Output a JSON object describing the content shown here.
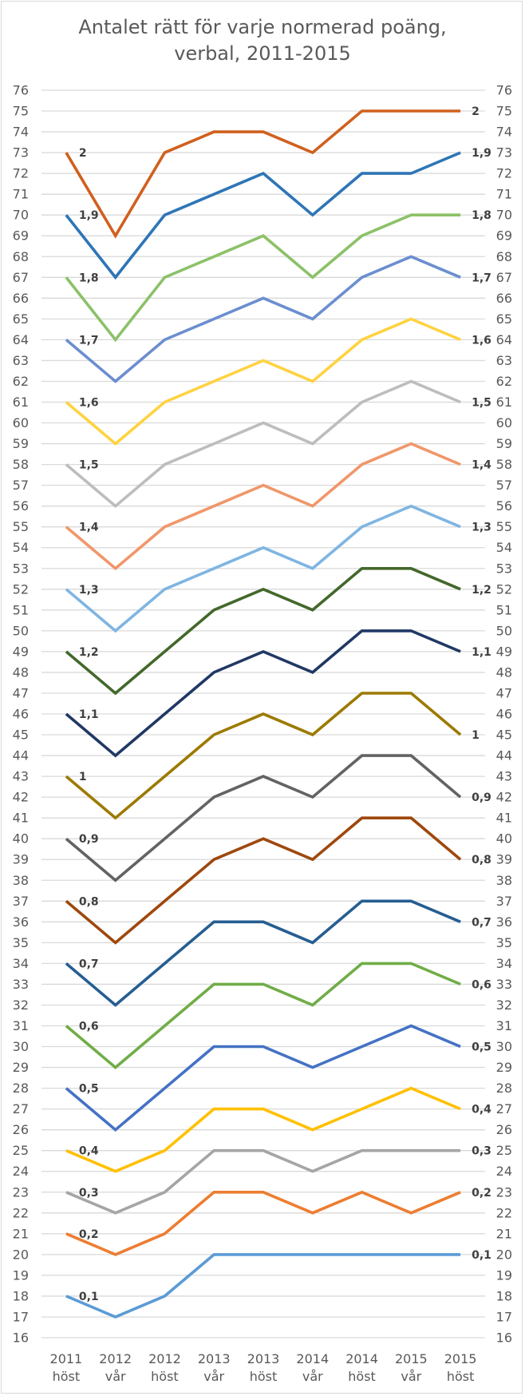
{
  "chart_data": {
    "type": "line",
    "title": "Antalet rätt för varje normerad poäng, verbal, 2011-2015",
    "title_lines": [
      "Antalet rätt för varje normerad poäng,",
      "verbal, 2011-2015"
    ],
    "xlabel": "",
    "ylabel": "",
    "ylim": [
      16,
      76
    ],
    "y_ticks": [
      16,
      17,
      18,
      19,
      20,
      21,
      22,
      23,
      24,
      25,
      26,
      27,
      28,
      29,
      30,
      31,
      32,
      33,
      34,
      35,
      36,
      37,
      38,
      39,
      40,
      41,
      42,
      43,
      44,
      45,
      46,
      47,
      48,
      49,
      50,
      51,
      52,
      53,
      54,
      55,
      56,
      57,
      58,
      59,
      60,
      61,
      62,
      63,
      64,
      65,
      66,
      67,
      68,
      69,
      70,
      71,
      72,
      73,
      74,
      75,
      76
    ],
    "secondary_y_axis": true,
    "grid": true,
    "legend": "none",
    "categories": [
      [
        "2011",
        "höst"
      ],
      [
        "2012",
        "vår"
      ],
      [
        "2012",
        "höst"
      ],
      [
        "2013",
        "vår"
      ],
      [
        "2013",
        "höst"
      ],
      [
        "2014",
        "vår"
      ],
      [
        "2014",
        "höst"
      ],
      [
        "2015",
        "vår"
      ],
      [
        "2015",
        "höst"
      ]
    ],
    "series": [
      {
        "name": "2",
        "color": "#D0601E",
        "values": [
          73,
          69,
          73,
          74,
          74,
          73,
          75,
          75,
          75
        ]
      },
      {
        "name": "1,9",
        "color": "#2E75B6",
        "values": [
          70,
          67,
          70,
          71,
          72,
          70,
          72,
          72,
          73
        ]
      },
      {
        "name": "1,8",
        "color": "#8CC168",
        "values": [
          67,
          64,
          67,
          68,
          69,
          67,
          69,
          70,
          70
        ]
      },
      {
        "name": "1,7",
        "color": "#6B8ED0",
        "values": [
          64,
          62,
          64,
          65,
          66,
          65,
          67,
          68,
          67
        ]
      },
      {
        "name": "1,6",
        "color": "#FFD23F",
        "values": [
          61,
          59,
          61,
          62,
          63,
          62,
          64,
          65,
          64
        ]
      },
      {
        "name": "1,5",
        "color": "#BDBDBD",
        "values": [
          58,
          56,
          58,
          59,
          60,
          59,
          61,
          62,
          61
        ]
      },
      {
        "name": "1,4",
        "color": "#F0976A",
        "values": [
          55,
          53,
          55,
          56,
          57,
          56,
          58,
          59,
          58
        ]
      },
      {
        "name": "1,3",
        "color": "#7FB5E2",
        "values": [
          52,
          50,
          52,
          53,
          54,
          53,
          55,
          56,
          55
        ]
      },
      {
        "name": "1,2",
        "color": "#43682B",
        "values": [
          49,
          47,
          49,
          51,
          52,
          51,
          53,
          53,
          52
        ]
      },
      {
        "name": "1,1",
        "color": "#203864",
        "values": [
          46,
          44,
          46,
          48,
          49,
          48,
          50,
          50,
          49
        ]
      },
      {
        "name": "1",
        "color": "#9C7A00",
        "values": [
          43,
          41,
          43,
          45,
          46,
          45,
          47,
          47,
          45
        ]
      },
      {
        "name": "0,9",
        "color": "#636363",
        "values": [
          40,
          38,
          40,
          42,
          43,
          42,
          44,
          44,
          42
        ]
      },
      {
        "name": "0,8",
        "color": "#9E480E",
        "values": [
          37,
          35,
          37,
          39,
          40,
          39,
          41,
          41,
          39
        ]
      },
      {
        "name": "0,7",
        "color": "#255E91",
        "values": [
          34,
          32,
          34,
          36,
          36,
          35,
          37,
          37,
          36
        ]
      },
      {
        "name": "0,6",
        "color": "#70AD47",
        "values": [
          31,
          29,
          31,
          33,
          33,
          32,
          34,
          34,
          33
        ]
      },
      {
        "name": "0,5",
        "color": "#4472C4",
        "values": [
          28,
          26,
          28,
          30,
          30,
          29,
          30,
          31,
          30
        ]
      },
      {
        "name": "0,4",
        "color": "#FFC000",
        "values": [
          25,
          24,
          25,
          27,
          27,
          26,
          27,
          28,
          27
        ]
      },
      {
        "name": "0,3",
        "color": "#A5A5A5",
        "values": [
          23,
          22,
          23,
          25,
          25,
          24,
          25,
          25,
          25
        ]
      },
      {
        "name": "0,2",
        "color": "#ED7D31",
        "values": [
          21,
          20,
          21,
          23,
          23,
          22,
          23,
          22,
          23
        ]
      },
      {
        "name": "0,1",
        "color": "#5B9BD5",
        "values": [
          18,
          17,
          18,
          20,
          20,
          20,
          20,
          20,
          20
        ]
      }
    ],
    "data_labels": "series name shown at first and last point of each line"
  },
  "colors": {
    "gridline": "#D9D9D9",
    "tick_text": "#595959",
    "label_text": "#404040"
  }
}
